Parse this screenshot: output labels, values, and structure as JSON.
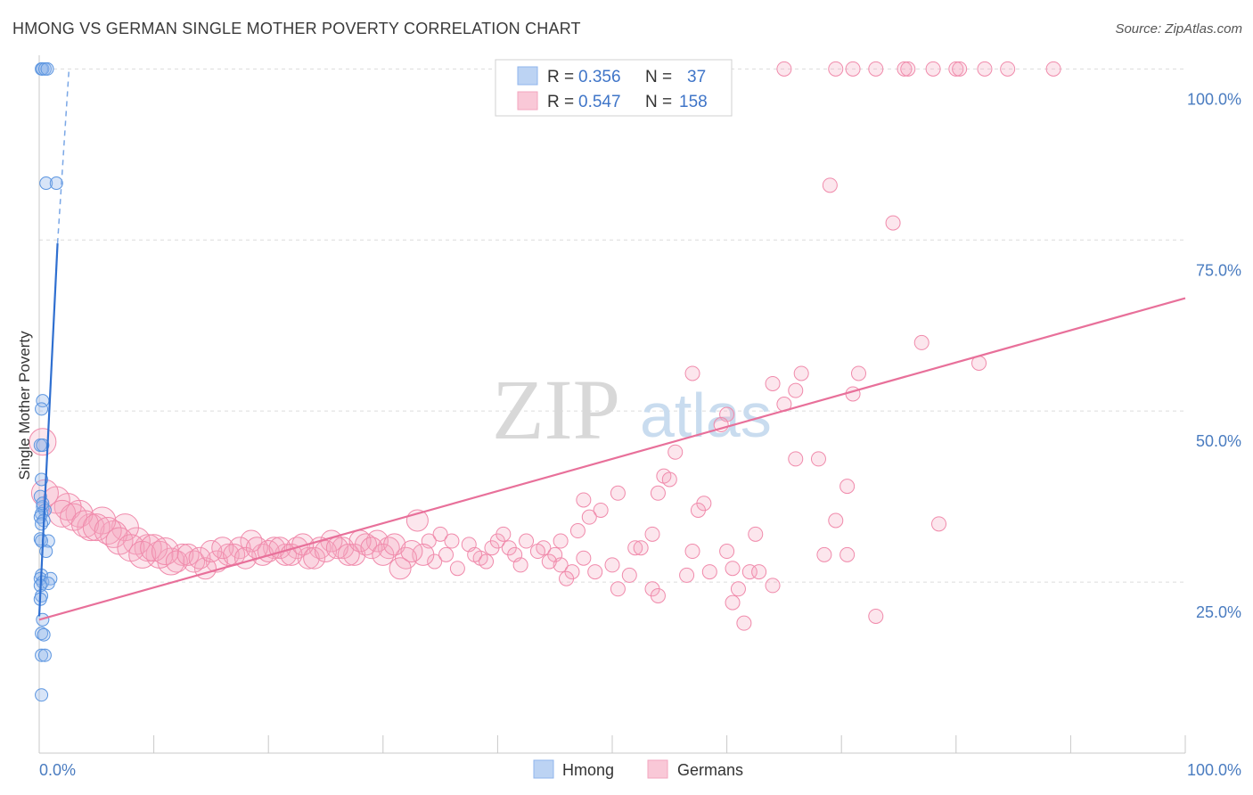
{
  "header": {
    "title": "HMONG VS GERMAN SINGLE MOTHER POVERTY CORRELATION CHART",
    "source": "Source: ZipAtlas.com"
  },
  "watermark": {
    "zip": "ZIP",
    "atlas": "atlas"
  },
  "legend_top": {
    "rows": [
      {
        "r_label": "R =",
        "r_value": "0.356",
        "n_label": "N =",
        "n_value": "37",
        "color": "#8fb4ec"
      },
      {
        "r_label": "R =",
        "r_value": "0.547",
        "n_label": "N =",
        "n_value": "158",
        "color": "#f3a6bf"
      }
    ]
  },
  "legend_bottom": [
    {
      "label": "Hmong",
      "color": "#8fb4ec"
    },
    {
      "label": "Germans",
      "color": "#f3a6bf"
    }
  ],
  "chart_data": {
    "type": "scatter",
    "title": "HMONG VS GERMAN SINGLE MOTHER POVERTY CORRELATION CHART",
    "xlabel": "",
    "ylabel": "Single Mother Poverty",
    "xlim": [
      0,
      100
    ],
    "ylim": [
      0,
      102
    ],
    "x_tick_labels": [
      "0.0%",
      "100.0%"
    ],
    "y_tick_labels": [
      "25.0%",
      "50.0%",
      "75.0%",
      "100.0%"
    ],
    "y_ticks": [
      25,
      50,
      75,
      100
    ],
    "grid": true,
    "legend_position": "top-center",
    "series": [
      {
        "name": "Hmong",
        "color": "#5b95e0",
        "trend": {
          "x1": 0,
          "y1": 20,
          "x2": 1.6,
          "y2": 74.5,
          "dashed_to": [
            2.6,
            100
          ]
        },
        "points": [
          [
            0.2,
            100
          ],
          [
            0.3,
            100
          ],
          [
            0.5,
            100
          ],
          [
            0.7,
            100
          ],
          [
            0.6,
            83.3
          ],
          [
            1.5,
            83.3
          ],
          [
            0.3,
            51.5
          ],
          [
            0.2,
            50.3
          ],
          [
            0.1,
            45
          ],
          [
            0.3,
            45
          ],
          [
            0.2,
            40
          ],
          [
            0.1,
            37.5
          ],
          [
            0.3,
            36
          ],
          [
            0.5,
            35.5
          ],
          [
            0.2,
            35
          ],
          [
            0.1,
            34.5
          ],
          [
            0.4,
            34
          ],
          [
            0.2,
            33.5
          ],
          [
            0.1,
            31.3
          ],
          [
            0.2,
            31
          ],
          [
            0.8,
            31
          ],
          [
            0.6,
            29.5
          ],
          [
            0.2,
            26
          ],
          [
            0.1,
            25.5
          ],
          [
            0.3,
            25
          ],
          [
            1.0,
            25.5
          ],
          [
            0.8,
            24.8
          ],
          [
            0.1,
            24.5
          ],
          [
            0.2,
            23
          ],
          [
            0.1,
            22.5
          ],
          [
            0.3,
            19.5
          ],
          [
            0.2,
            17.5
          ],
          [
            0.4,
            17.3
          ],
          [
            0.2,
            14.3
          ],
          [
            0.5,
            14.3
          ],
          [
            0.2,
            8.5
          ],
          [
            0.3,
            36.5
          ]
        ]
      },
      {
        "name": "Germans",
        "color": "#f08aab",
        "trend": {
          "x1": 0,
          "y1": 19.5,
          "x2": 100,
          "y2": 66.5
        },
        "points": [
          [
            65,
            100
          ],
          [
            69.5,
            100
          ],
          [
            71,
            100
          ],
          [
            73,
            100
          ],
          [
            75.5,
            100
          ],
          [
            75.8,
            100
          ],
          [
            78,
            100
          ],
          [
            80,
            100
          ],
          [
            80.3,
            100
          ],
          [
            82.5,
            100
          ],
          [
            84.5,
            100
          ],
          [
            88.5,
            100
          ],
          [
            69,
            83
          ],
          [
            74.5,
            77.5
          ],
          [
            77,
            60
          ],
          [
            82,
            57
          ],
          [
            57,
            55.5
          ],
          [
            66.5,
            55.5
          ],
          [
            71.5,
            55.5
          ],
          [
            64,
            54
          ],
          [
            66,
            53
          ],
          [
            71,
            52.5
          ],
          [
            65,
            51
          ],
          [
            60,
            49.5
          ],
          [
            59.5,
            48
          ],
          [
            55.5,
            44
          ],
          [
            66,
            43
          ],
          [
            68,
            43
          ],
          [
            54.5,
            40.5
          ],
          [
            55,
            40
          ],
          [
            70.5,
            39
          ],
          [
            54,
            38
          ],
          [
            50.5,
            38
          ],
          [
            47.5,
            37
          ],
          [
            58,
            36.5
          ],
          [
            49,
            35.5
          ],
          [
            57.5,
            35.5
          ],
          [
            48,
            34.5
          ],
          [
            69.5,
            34
          ],
          [
            78.5,
            33.5
          ],
          [
            47,
            32.5
          ],
          [
            53.5,
            32
          ],
          [
            62.5,
            32
          ],
          [
            45.5,
            31
          ],
          [
            44,
            30
          ],
          [
            52,
            30
          ],
          [
            60,
            29.5
          ],
          [
            57,
            29.5
          ],
          [
            45,
            29
          ],
          [
            68.5,
            29
          ],
          [
            70.5,
            29
          ],
          [
            47.5,
            28.5
          ],
          [
            45.5,
            27.5
          ],
          [
            50,
            27.5
          ],
          [
            60.5,
            27
          ],
          [
            62,
            26.5
          ],
          [
            46.5,
            26.5
          ],
          [
            56.5,
            26
          ],
          [
            64,
            24.5
          ],
          [
            50.5,
            24
          ],
          [
            53.5,
            24
          ],
          [
            61,
            24
          ],
          [
            54,
            23
          ],
          [
            60.5,
            22
          ],
          [
            61.5,
            19
          ],
          [
            73,
            20
          ],
          [
            33,
            34
          ],
          [
            34,
            31
          ],
          [
            35,
            32
          ],
          [
            36,
            31
          ],
          [
            37.5,
            30.5
          ],
          [
            39.5,
            30
          ],
          [
            41,
            30
          ],
          [
            42.5,
            31
          ],
          [
            43.5,
            29.5
          ],
          [
            41.5,
            29
          ],
          [
            40,
            31
          ],
          [
            38.5,
            28.5
          ],
          [
            36.5,
            27
          ],
          [
            34.5,
            28
          ],
          [
            33.5,
            29
          ],
          [
            32,
            28.5
          ],
          [
            31.5,
            27
          ],
          [
            30.5,
            30
          ],
          [
            29.5,
            31
          ],
          [
            28.5,
            30.5
          ],
          [
            27.5,
            29
          ],
          [
            26.5,
            30
          ],
          [
            25.5,
            31
          ],
          [
            24.5,
            30
          ],
          [
            23.5,
            28.5
          ],
          [
            22.5,
            30
          ],
          [
            21.5,
            29
          ],
          [
            20.5,
            30
          ],
          [
            19.5,
            29
          ],
          [
            18.5,
            31
          ],
          [
            17.5,
            30
          ],
          [
            16.5,
            29
          ],
          [
            15.5,
            28
          ],
          [
            14.5,
            27
          ],
          [
            13.5,
            28
          ],
          [
            12.5,
            29
          ],
          [
            11.5,
            28
          ],
          [
            10.5,
            29
          ],
          [
            9.5,
            30
          ],
          [
            8.5,
            31
          ],
          [
            7.5,
            33
          ],
          [
            6.5,
            32
          ],
          [
            5.5,
            34
          ],
          [
            4.5,
            33
          ],
          [
            3.5,
            35
          ],
          [
            2.5,
            36
          ],
          [
            1.5,
            37
          ],
          [
            0.5,
            38
          ],
          [
            0.3,
            45.5
          ],
          [
            2.0,
            35
          ],
          [
            3.0,
            34.5
          ],
          [
            4.0,
            33.5
          ],
          [
            5.0,
            33
          ],
          [
            6.0,
            32.5
          ],
          [
            7.0,
            31
          ],
          [
            8.0,
            30
          ],
          [
            9.0,
            29
          ],
          [
            10.0,
            30
          ],
          [
            11.0,
            29.5
          ],
          [
            12.0,
            28
          ],
          [
            13.0,
            29
          ],
          [
            14.0,
            28.5
          ],
          [
            15.0,
            29.5
          ],
          [
            16.0,
            30
          ],
          [
            17.0,
            29
          ],
          [
            18.0,
            28.5
          ],
          [
            19.0,
            30
          ],
          [
            20.0,
            29.5
          ],
          [
            21.0,
            30
          ],
          [
            22.0,
            29
          ],
          [
            23.0,
            30.5
          ],
          [
            24.0,
            28.5
          ],
          [
            25.0,
            29.5
          ],
          [
            26.0,
            30
          ],
          [
            27.0,
            29
          ],
          [
            28.0,
            31
          ],
          [
            29.0,
            30
          ],
          [
            30.0,
            29
          ],
          [
            31.0,
            30.5
          ],
          [
            32.5,
            29.5
          ],
          [
            35.5,
            29
          ],
          [
            38.0,
            29
          ],
          [
            39.0,
            28
          ],
          [
            40.5,
            32
          ],
          [
            42.0,
            27.5
          ],
          [
            44.5,
            28
          ],
          [
            46.0,
            25.5
          ],
          [
            48.5,
            26.5
          ],
          [
            51.5,
            26
          ],
          [
            52.5,
            30
          ],
          [
            58.5,
            26.5
          ],
          [
            62.8,
            26.5
          ]
        ]
      }
    ]
  }
}
